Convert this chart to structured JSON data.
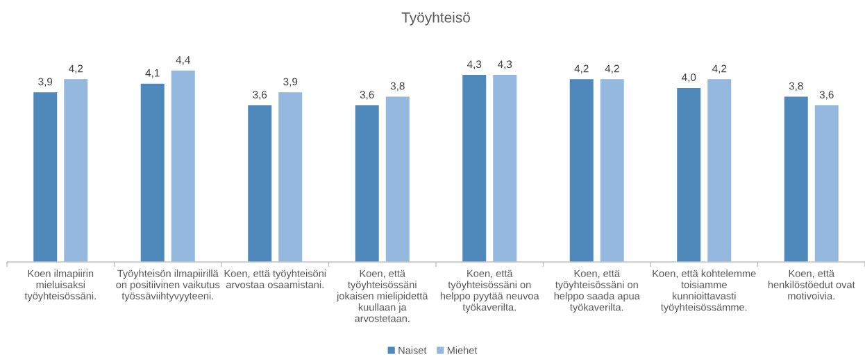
{
  "chart_data": {
    "type": "bar",
    "title": "Työyhteisö",
    "categories": [
      "Koen ilmapiirin\nmieluisaksi\ntyöyhteisössäni.",
      "Työyhteisön ilmapiirillä\non positiivinen vaikutus\ntyössäviihtyvyyteeni.",
      "Koen, että työyhteisöni\narvostaa osaamistani.",
      "Koen, että\ntyöyhteisössäni\njokaisen mielipidettä\nkuullaan ja\narvostetaan.",
      "Koen, että\ntyöyhteisössäni on\nhelppo pyytää neuvoa\ntyökaverilta.",
      "Koen, että\ntyöyhteisössäni on\nhelppo saada apua\ntyökaverilta.",
      "Koen, että kohtelemme\ntoisiamme\nkunnioittavasti\ntyöyhteisössämme.",
      "Koen, että\nhenkilöstöedut ovat\nmotivoivia."
    ],
    "series": [
      {
        "name": "Naiset",
        "color": "#4f88bb",
        "values": [
          3.9,
          4.1,
          3.6,
          3.6,
          4.3,
          4.2,
          4.0,
          3.8
        ],
        "value_labels": [
          "3,9",
          "4,1",
          "3,6",
          "3,6",
          "4,3",
          "4,2",
          "4,0",
          "3,8"
        ]
      },
      {
        "name": "Miehet",
        "color": "#95b8df",
        "values": [
          4.2,
          4.4,
          3.9,
          3.8,
          4.3,
          4.2,
          4.2,
          3.6
        ],
        "value_labels": [
          "4,2",
          "4,4",
          "3,9",
          "3,8",
          "4,3",
          "4,2",
          "4,2",
          "3,6"
        ]
      }
    ],
    "tick_labels": "x",
    "legend": "bottom"
  }
}
